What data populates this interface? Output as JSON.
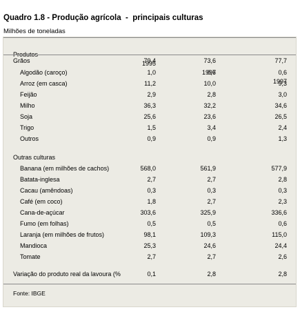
{
  "title": "Quadro 1.8 - Produção agrícola  -  principais culturas",
  "subtitle": "Milhões de toneladas",
  "header": {
    "label": "Produtos",
    "years": [
      "1995",
      "1996",
      "1997"
    ]
  },
  "rows": [
    {
      "label": "Grãos",
      "indent": false,
      "values": [
        "79,4",
        "73,6",
        "77,7"
      ]
    },
    {
      "label": "Algodão (caroço)",
      "indent": true,
      "values": [
        "1,0",
        "0,7",
        "0,6"
      ]
    },
    {
      "label": "Arroz (em casca)",
      "indent": true,
      "values": [
        "11,2",
        "10,0",
        "9,3"
      ]
    },
    {
      "label": "Feijão",
      "indent": true,
      "values": [
        "2,9",
        "2,8",
        "3,0"
      ]
    },
    {
      "label": "Milho",
      "indent": true,
      "values": [
        "36,3",
        "32,2",
        "34,6"
      ]
    },
    {
      "label": "Soja",
      "indent": true,
      "values": [
        "25,6",
        "23,6",
        "26,5"
      ]
    },
    {
      "label": "Trigo",
      "indent": true,
      "values": [
        "1,5",
        "3,4",
        "2,4"
      ]
    },
    {
      "label": "Outros",
      "indent": true,
      "values": [
        "0,9",
        "0,9",
        "1,3"
      ]
    },
    {
      "label": "Outras culturas",
      "indent": false,
      "values": [
        "",
        "",
        ""
      ]
    },
    {
      "label": "Banana (em milhões de cachos)",
      "indent": true,
      "values": [
        "568,0",
        "561,9",
        "577,9"
      ]
    },
    {
      "label": "Batata-inglesa",
      "indent": true,
      "values": [
        "2,7",
        "2,7",
        "2,8"
      ]
    },
    {
      "label": "Cacau (amêndoas)",
      "indent": true,
      "values": [
        "0,3",
        "0,3",
        "0,3"
      ]
    },
    {
      "label": "Café (em coco)",
      "indent": true,
      "values": [
        "1,8",
        "2,7",
        "2,3"
      ]
    },
    {
      "label": "Cana-de-açúcar",
      "indent": true,
      "values": [
        "303,6",
        "325,9",
        "336,6"
      ]
    },
    {
      "label": "Fumo (em folhas)",
      "indent": true,
      "values": [
        "0,5",
        "0,5",
        "0,6"
      ]
    },
    {
      "label": "Laranja (em milhões de frutos)",
      "indent": true,
      "values": [
        "98,1",
        "109,3",
        "115,0"
      ]
    },
    {
      "label": "Mandioca",
      "indent": true,
      "values": [
        "25,3",
        "24,6",
        "24,4"
      ]
    },
    {
      "label": "Tomate",
      "indent": true,
      "values": [
        "2,7",
        "2,7",
        "2,6"
      ]
    },
    {
      "label": "Variação do produto real da lavoura (%",
      "indent": false,
      "values": [
        "0,1",
        "2,8",
        "2,8"
      ]
    }
  ],
  "source": "Fonte: IBGE",
  "colors": {
    "panel_background": "#ecebe4",
    "rule": "#8a8a8a",
    "page_background": "#ffffff"
  }
}
